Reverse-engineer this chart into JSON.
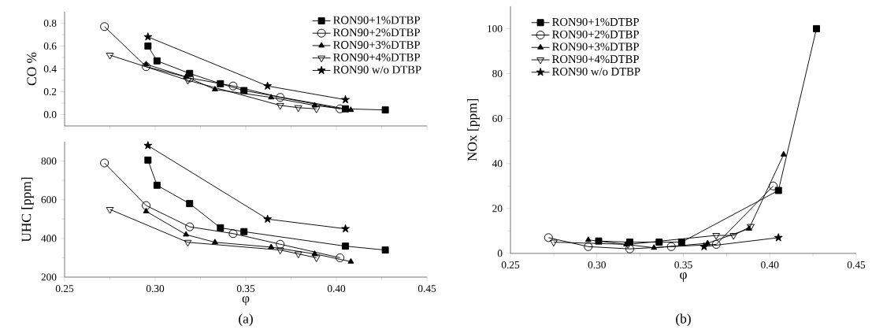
{
  "chart_data": [
    {
      "type": "line",
      "ylabel": "CO  %",
      "xlim": [
        0.25,
        0.45
      ],
      "ylim": [
        -0.1,
        0.9
      ],
      "xticks": [
        {
          "value": 0.25,
          "label": null
        },
        {
          "value": 0.3,
          "label": null
        },
        {
          "value": 0.35,
          "label": null
        },
        {
          "value": 0.4,
          "label": null
        },
        {
          "value": 0.45,
          "label": null
        }
      ],
      "yticks": [
        {
          "value": 0,
          "label": "0.0"
        },
        {
          "value": 0.2,
          "label": "0.2"
        },
        {
          "value": 0.4,
          "label": "0.4"
        },
        {
          "value": 0.6,
          "label": "0.6"
        },
        {
          "value": 0.8,
          "label": "0.8"
        }
      ],
      "tick_labels": "y",
      "legend": "top right",
      "grid": false,
      "series": [
        {
          "name": "RON90+1%DTBP",
          "color": "#000000",
          "marker": "square",
          "x": [
            0.296,
            0.301,
            0.319,
            0.336,
            0.349,
            0.405,
            0.427
          ],
          "values": [
            0.6,
            0.47,
            0.36,
            0.27,
            0.21,
            0.05,
            0.04
          ]
        },
        {
          "name": "RON90+2%DTBP",
          "color": "#000000",
          "marker": "circle",
          "x": [
            0.272,
            0.295,
            0.319,
            0.343,
            0.369,
            0.402
          ],
          "values": [
            0.77,
            0.42,
            0.32,
            0.25,
            0.15,
            0.05
          ]
        },
        {
          "name": "RON90+3%DTBP",
          "color": "#000000",
          "marker": "triangle",
          "x": [
            0.295,
            0.317,
            0.333,
            0.364,
            0.388,
            0.408
          ],
          "values": [
            0.44,
            0.33,
            0.22,
            0.15,
            0.08,
            0.04
          ]
        },
        {
          "name": "RON90+4%DTBP",
          "color": "#000000",
          "marker": "triangle_down",
          "x": [
            0.275,
            0.318,
            0.369,
            0.379,
            0.389
          ],
          "values": [
            0.52,
            0.3,
            0.08,
            0.06,
            0.05
          ]
        },
        {
          "name": "RON90 w/o DTBP",
          "color": "#000000",
          "marker": "star",
          "x": [
            0.296,
            0.362,
            0.405
          ],
          "values": [
            0.68,
            0.25,
            0.13
          ]
        }
      ]
    },
    {
      "type": "line",
      "xlabel": "φ",
      "ylabel": "UHC  [ppm]",
      "annotations": [
        "(a)"
      ],
      "xlim": [
        0.25,
        0.45
      ],
      "ylim": [
        200,
        900
      ],
      "xticks": [
        {
          "value": 0.25,
          "label": "0.25"
        },
        {
          "value": 0.3,
          "label": "0.30"
        },
        {
          "value": 0.35,
          "label": "0.35"
        },
        {
          "value": 0.4,
          "label": "0.40"
        },
        {
          "value": 0.45,
          "label": "0.45"
        }
      ],
      "yticks": [
        200,
        400,
        600,
        800
      ],
      "legend": false,
      "grid": false,
      "series": [
        {
          "color": "#000000",
          "marker": "square",
          "x": [
            0.296,
            0.301,
            0.319,
            0.336,
            0.349,
            0.405,
            0.427
          ],
          "values": [
            805,
            675,
            580,
            455,
            435,
            360,
            340
          ]
        },
        {
          "color": "#000000",
          "marker": "circle",
          "x": [
            0.272,
            0.295,
            0.319,
            0.343,
            0.369,
            0.402
          ],
          "values": [
            790,
            570,
            460,
            425,
            370,
            300
          ]
        },
        {
          "color": "#000000",
          "marker": "triangle",
          "x": [
            0.295,
            0.317,
            0.333,
            0.364,
            0.388,
            0.408
          ],
          "values": [
            540,
            420,
            380,
            355,
            320,
            280
          ]
        },
        {
          "color": "#000000",
          "marker": "triangle_down",
          "x": [
            0.275,
            0.318,
            0.369,
            0.379,
            0.389
          ],
          "values": [
            550,
            380,
            340,
            320,
            300
          ]
        },
        {
          "color": "#000000",
          "marker": "star",
          "x": [
            0.296,
            0.362,
            0.405
          ],
          "values": [
            880,
            500,
            450
          ]
        }
      ]
    },
    {
      "type": "line",
      "xlabel": "φ",
      "ylabel": "NOx  [ppm]",
      "annotations": [
        "(b)"
      ],
      "xlim": [
        0.25,
        0.45
      ],
      "ylim": [
        0,
        110
      ],
      "xticks": [
        {
          "value": 0.25,
          "label": "0.25"
        },
        {
          "value": 0.3,
          "label": "0.30"
        },
        {
          "value": 0.35,
          "label": "0.35"
        },
        {
          "value": 0.4,
          "label": "0.40"
        },
        {
          "value": 0.45,
          "label": "0.45"
        }
      ],
      "yticks": [
        0,
        20,
        40,
        60,
        80,
        100
      ],
      "legend": "top left",
      "grid": false,
      "series": [
        {
          "name": "RON90+1%DTBP",
          "color": "#000000",
          "marker": "square",
          "x": [
            0.301,
            0.319,
            0.336,
            0.349,
            0.405,
            0.427
          ],
          "values": [
            5.5,
            5,
            5,
            5,
            28,
            100
          ]
        },
        {
          "name": "RON90+2%DTBP",
          "color": "#000000",
          "marker": "circle",
          "x": [
            0.272,
            0.295,
            0.319,
            0.343,
            0.369,
            0.402
          ],
          "values": [
            7,
            3,
            2,
            3,
            4,
            30
          ]
        },
        {
          "name": "RON90+3%DTBP",
          "color": "#000000",
          "marker": "triangle",
          "x": [
            0.295,
            0.317,
            0.333,
            0.364,
            0.388,
            0.408
          ],
          "values": [
            6,
            4,
            2.5,
            4.5,
            11,
            44
          ]
        },
        {
          "name": "RON90+4%DTBP",
          "color": "#000000",
          "marker": "triangle_down",
          "x": [
            0.275,
            0.318,
            0.369,
            0.379,
            0.389
          ],
          "values": [
            5,
            4,
            8,
            8,
            12
          ]
        },
        {
          "name": "RON90 w/o DTBP",
          "color": "#000000",
          "marker": "star",
          "x": [
            0.362,
            0.405
          ],
          "values": [
            3,
            7
          ]
        }
      ]
    }
  ]
}
